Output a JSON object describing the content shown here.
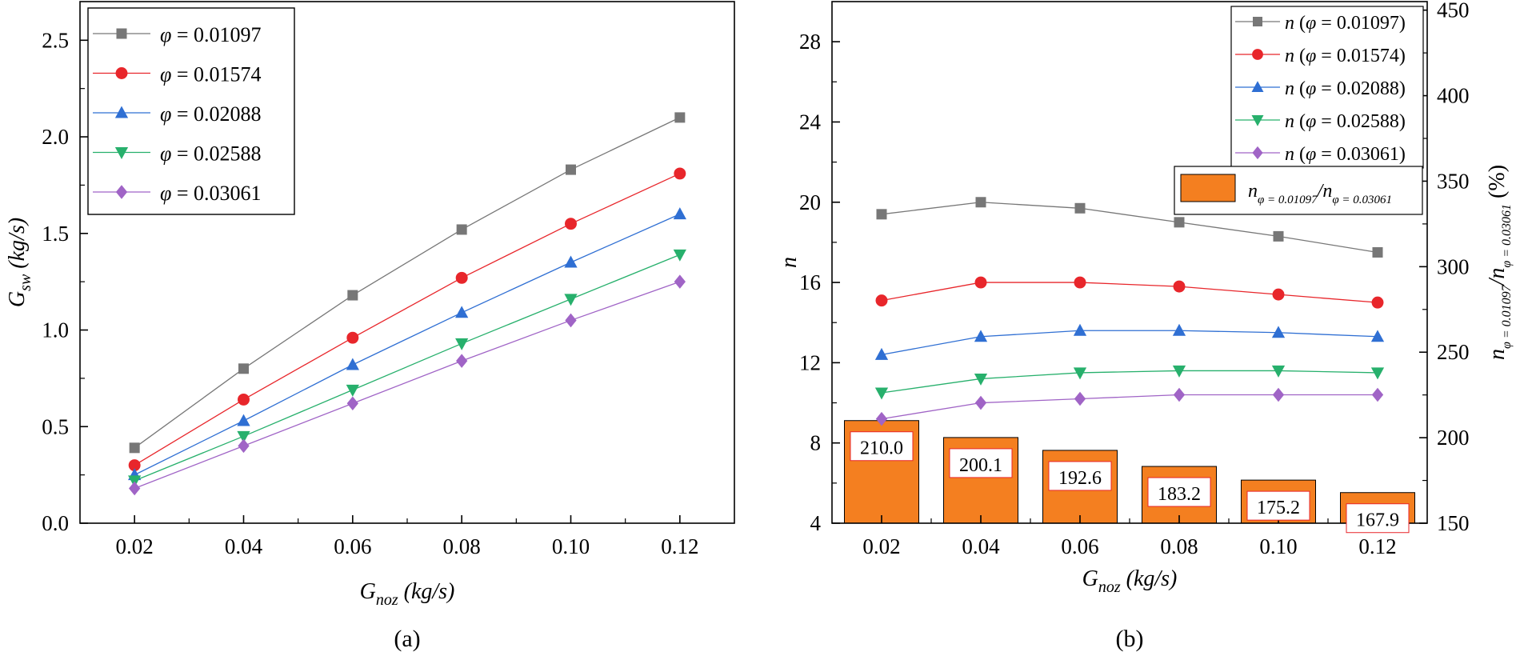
{
  "figure_labels": {
    "a": "(a)",
    "b": "(b)"
  },
  "colors": {
    "series": [
      "#777777",
      "#e8262b",
      "#2f6fd3",
      "#27b06c",
      "#a064c6"
    ],
    "bar_fill": "#f47f20",
    "annotation_border": "#e8262b"
  },
  "chart_data": [
    {
      "id": "a",
      "type": "line",
      "title": "",
      "xlabel": "G_noz (kg/s)",
      "xlabel_main": "G",
      "xlabel_sub": "noz",
      "xlabel_unit": " (kg/s)",
      "ylabel": "G_sw (kg/s)",
      "ylabel_main": "G",
      "ylabel_sub": "sw",
      "ylabel_unit": " (kg/s)",
      "xlim": [
        0.01,
        0.13
      ],
      "ylim": [
        0.0,
        2.7
      ],
      "x": [
        0.02,
        0.04,
        0.06,
        0.08,
        0.1,
        0.12
      ],
      "xtick_labels": [
        "0.02",
        "0.04",
        "0.06",
        "0.08",
        "0.10",
        "0.12"
      ],
      "yticks": [
        0.0,
        0.5,
        1.0,
        1.5,
        2.0,
        2.5
      ],
      "ytick_labels": [
        "0.0",
        "0.5",
        "1.0",
        "1.5",
        "2.0",
        "2.5"
      ],
      "legend_position": "top-left",
      "series": [
        {
          "name": "φ = 0.01097",
          "legend_symbol": "φ",
          "legend_value": " = 0.01097",
          "marker": "square",
          "values": [
            0.39,
            0.8,
            1.18,
            1.52,
            1.83,
            2.1
          ]
        },
        {
          "name": "φ = 0.01574",
          "legend_symbol": "φ",
          "legend_value": " = 0.01574",
          "marker": "circle",
          "values": [
            0.3,
            0.64,
            0.96,
            1.27,
            1.55,
            1.81
          ]
        },
        {
          "name": "φ = 0.02088",
          "legend_symbol": "φ",
          "legend_value": " = 0.02088",
          "marker": "triangle-up",
          "values": [
            0.25,
            0.53,
            0.82,
            1.09,
            1.35,
            1.6
          ]
        },
        {
          "name": "φ = 0.02588",
          "legend_symbol": "φ",
          "legend_value": " = 0.02588",
          "marker": "triangle-down",
          "values": [
            0.22,
            0.45,
            0.69,
            0.93,
            1.16,
            1.39
          ]
        },
        {
          "name": "φ = 0.03061",
          "legend_symbol": "φ",
          "legend_value": " = 0.03061",
          "marker": "diamond",
          "values": [
            0.18,
            0.4,
            0.62,
            0.84,
            1.05,
            1.25
          ]
        }
      ]
    },
    {
      "id": "b",
      "type": "line+bar",
      "title": "",
      "xlabel": "G_noz (kg/s)",
      "xlabel_main": "G",
      "xlabel_sub": "noz",
      "xlabel_unit": " (kg/s)",
      "ylabel": "n",
      "y2label": "n_φ=0.01097/n_φ=0.03061 (%)",
      "y2label_n1": "n",
      "y2label_sub1": "φ = 0.01097",
      "y2label_slash": "/",
      "y2label_n2": "n",
      "y2label_sub2": "φ = 0.03061",
      "y2label_unit": " (%)",
      "xlim": [
        0.01,
        0.13
      ],
      "ylim": [
        4,
        30
      ],
      "y2lim": [
        150,
        455
      ],
      "x": [
        0.02,
        0.04,
        0.06,
        0.08,
        0.1,
        0.12
      ],
      "xtick_labels": [
        "0.02",
        "0.04",
        "0.06",
        "0.08",
        "0.10",
        "0.12"
      ],
      "yticks": [
        4,
        8,
        12,
        16,
        20,
        24,
        28
      ],
      "ytick_labels": [
        "4",
        "8",
        "12",
        "16",
        "20",
        "24",
        "28"
      ],
      "y2ticks": [
        150,
        200,
        250,
        300,
        350,
        400,
        450
      ],
      "y2tick_labels": [
        "150",
        "200",
        "250",
        "300",
        "350",
        "400",
        "450"
      ],
      "legend_position": "top-right",
      "series": [
        {
          "name": "n (φ = 0.01097)",
          "legend_n": "n",
          "legend_open": " (",
          "legend_symbol": "φ",
          "legend_value": " = 0.01097)",
          "marker": "square",
          "values": [
            19.4,
            20.0,
            19.7,
            19.0,
            18.3,
            17.5
          ]
        },
        {
          "name": "n (φ = 0.01574)",
          "legend_n": "n",
          "legend_open": " (",
          "legend_symbol": "φ",
          "legend_value": " = 0.01574)",
          "marker": "circle",
          "values": [
            15.1,
            16.0,
            16.0,
            15.8,
            15.4,
            15.0
          ]
        },
        {
          "name": "n (φ = 0.02088)",
          "legend_n": "n",
          "legend_open": " (",
          "legend_symbol": "φ",
          "legend_value": " = 0.02088)",
          "marker": "triangle-up",
          "values": [
            12.4,
            13.3,
            13.6,
            13.6,
            13.5,
            13.3
          ]
        },
        {
          "name": "n (φ = 0.02588)",
          "legend_n": "n",
          "legend_open": " (",
          "legend_symbol": "φ",
          "legend_value": " = 0.02588)",
          "marker": "triangle-down",
          "values": [
            10.5,
            11.2,
            11.5,
            11.6,
            11.6,
            11.5
          ]
        },
        {
          "name": "n (φ = 0.03061)",
          "legend_n": "n",
          "legend_open": " (",
          "legend_symbol": "φ",
          "legend_value": " = 0.03061)",
          "marker": "diamond",
          "values": [
            9.2,
            10.0,
            10.2,
            10.4,
            10.4,
            10.4
          ]
        }
      ],
      "bars": {
        "name": "n_φ=0.01097/n_φ=0.03061",
        "axis": "right",
        "values": [
          210.0,
          200.1,
          192.6,
          183.2,
          175.2,
          167.9
        ],
        "labels": [
          "210.0",
          "200.1",
          "192.6",
          "183.2",
          "175.2",
          "167.9"
        ]
      }
    }
  ]
}
